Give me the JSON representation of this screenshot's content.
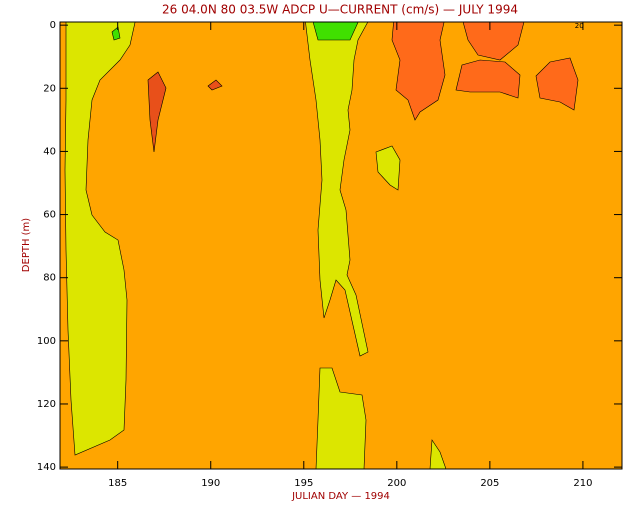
{
  "chart_data": {
    "type": "contour",
    "title": "26 04.0N 80 03.5W ADCP U—CURRENT (cm/s) — JULY 1994",
    "xlabel": "JULIAN DAY — 1994",
    "ylabel": "DEPTH (m)",
    "xlim": [
      181.9,
      212.1
    ],
    "ylim": [
      140.6,
      -1
    ],
    "xticks": [
      185,
      190,
      195,
      200,
      205,
      210
    ],
    "yticks": [
      0,
      20,
      40,
      60,
      80,
      100,
      120,
      140
    ],
    "background_color": "#ffa500",
    "contour_labels": [
      {
        "x": 209.8,
        "y": 0.2,
        "value": 20
      }
    ]
  }
}
